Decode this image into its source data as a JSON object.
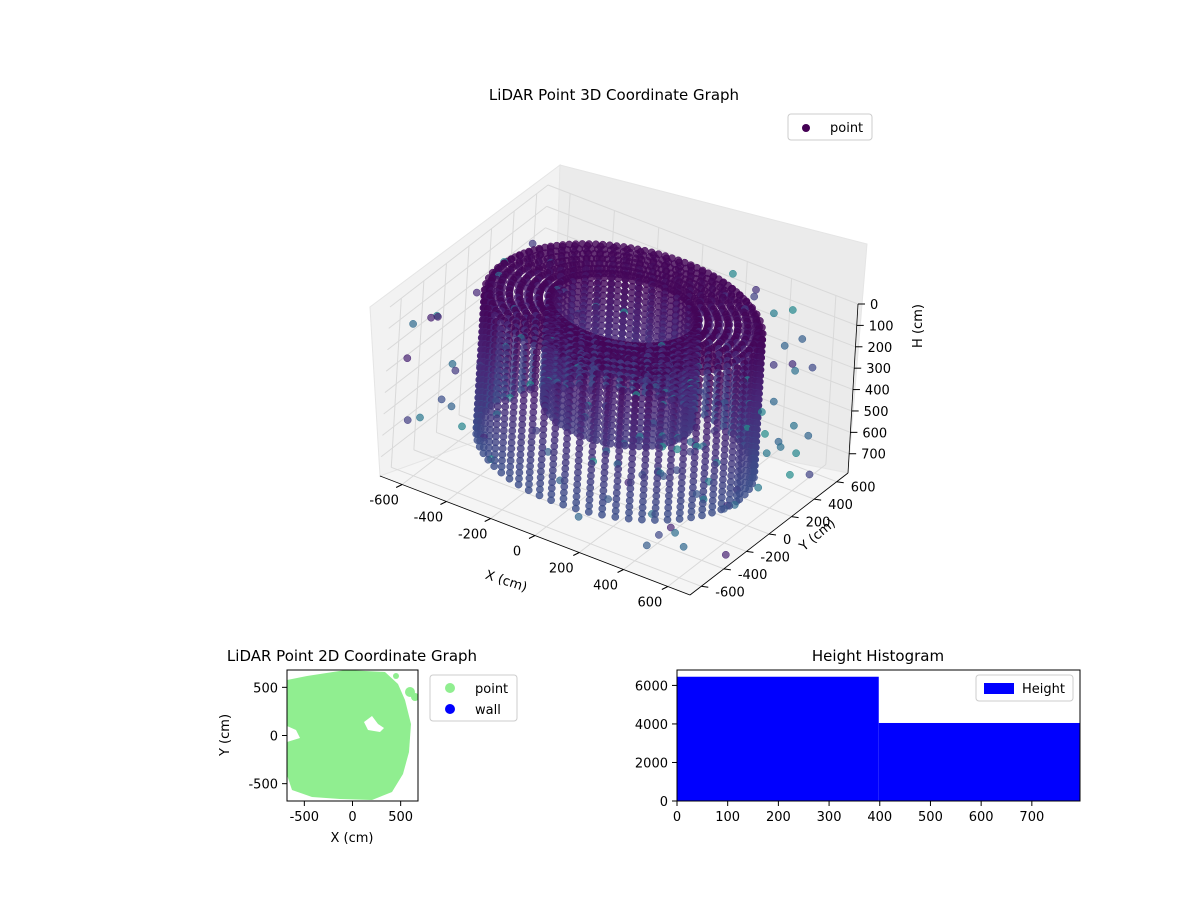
{
  "chart_data": [
    {
      "type": "scatter",
      "projection": "3d",
      "title": "LiDAR Point 3D Coordinate Graph",
      "xlabel": "X (cm)",
      "ylabel": "Y (cm)",
      "zlabel": "H (cm)",
      "xticks": [
        -600,
        -400,
        -200,
        0,
        200,
        400,
        600
      ],
      "yticks": [
        -600,
        -400,
        -200,
        0,
        200,
        400,
        600
      ],
      "zticks": [
        0,
        100,
        200,
        300,
        400,
        500,
        600,
        700
      ],
      "xlim": [
        -700,
        700
      ],
      "ylim": [
        -700,
        700
      ],
      "zlim": [
        0,
        790
      ],
      "z_axis_inverted": true,
      "colormap": "viridis",
      "legend": {
        "entries": [
          "point"
        ],
        "loc": "upper-right"
      },
      "grid": true,
      "description_series": {
        "name": "point",
        "shape": "ring-shaped building walls with vertical point columns, sparse outliers",
        "inner_radius_approx": 300,
        "outer_radius_approx": 560,
        "height_range": [
          0,
          790
        ]
      }
    },
    {
      "type": "scatter",
      "title": "LiDAR Point 2D Coordinate Graph",
      "xlabel": "X (cm)",
      "ylabel": "Y (cm)",
      "xticks": [
        -500,
        0,
        500
      ],
      "yticks": [
        -500,
        0,
        500
      ],
      "xlim": [
        -680,
        680
      ],
      "ylim": [
        -680,
        680
      ],
      "legend": {
        "entries": [
          "point",
          "wall"
        ],
        "loc": "outside-right"
      },
      "series": [
        {
          "name": "point",
          "color": "#90ee90"
        },
        {
          "name": "wall",
          "color": "#0000ff"
        }
      ]
    },
    {
      "type": "bar",
      "subtype": "histogram",
      "title": "Height Histogram",
      "xticks": [
        0,
        100,
        200,
        300,
        400,
        500,
        600,
        700
      ],
      "yticks": [
        0,
        2000,
        4000,
        6000
      ],
      "xlim": [
        0,
        795
      ],
      "ylim": [
        0,
        6800
      ],
      "legend": {
        "entries": [
          "Height"
        ],
        "loc": "upper-right"
      },
      "color": "#0000ff",
      "bins": [
        {
          "from": 0,
          "to": 398,
          "count": 6450
        },
        {
          "from": 398,
          "to": 795,
          "count": 4050
        }
      ]
    }
  ]
}
